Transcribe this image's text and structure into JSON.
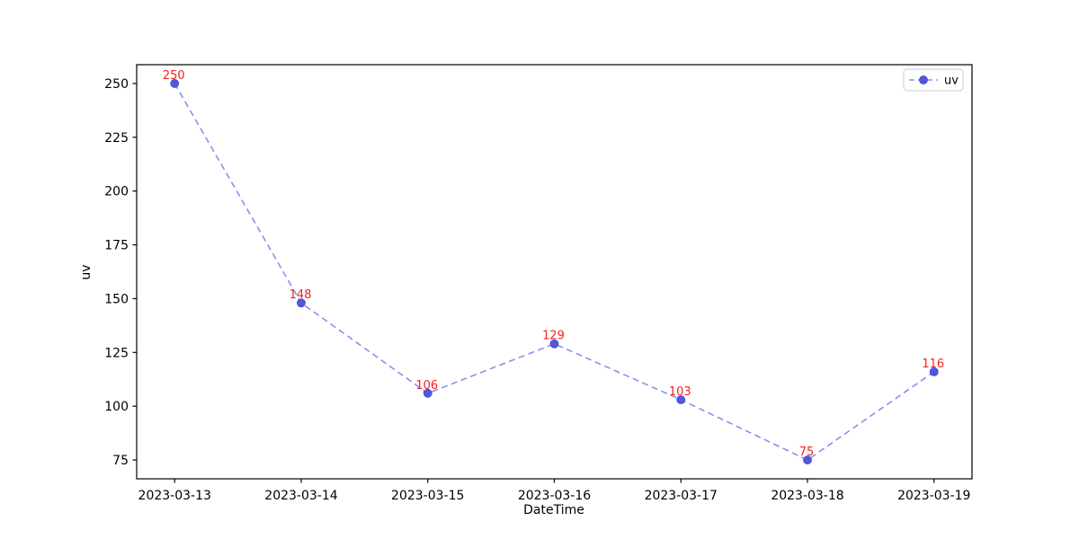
{
  "chart_data": {
    "type": "line",
    "title": "",
    "xlabel": "DateTime",
    "ylabel": "uv",
    "categories": [
      "2023-03-13",
      "2023-03-14",
      "2023-03-15",
      "2023-03-16",
      "2023-03-17",
      "2023-03-18",
      "2023-03-19"
    ],
    "series": [
      {
        "name": "uv",
        "values": [
          250,
          148,
          106,
          129,
          103,
          75,
          116
        ],
        "marker": "circle",
        "line_style": "dashed"
      }
    ],
    "point_labels": [
      "250",
      "148",
      "106",
      "129",
      "103",
      "75",
      "116"
    ],
    "y_ticks": [
      75,
      100,
      125,
      150,
      175,
      200,
      225,
      250
    ],
    "ylim": [
      66.25,
      258.75
    ],
    "x_margin": 0.3,
    "grid": false,
    "legend_position": "upper right",
    "colors": {
      "line": "#8d8df1",
      "marker_fill": "#5456d9",
      "marker_edge": "#4648c8",
      "annotation": "#f02222",
      "axis": "#000000",
      "legend_border": "#cccccc",
      "background": "#ffffff"
    }
  }
}
